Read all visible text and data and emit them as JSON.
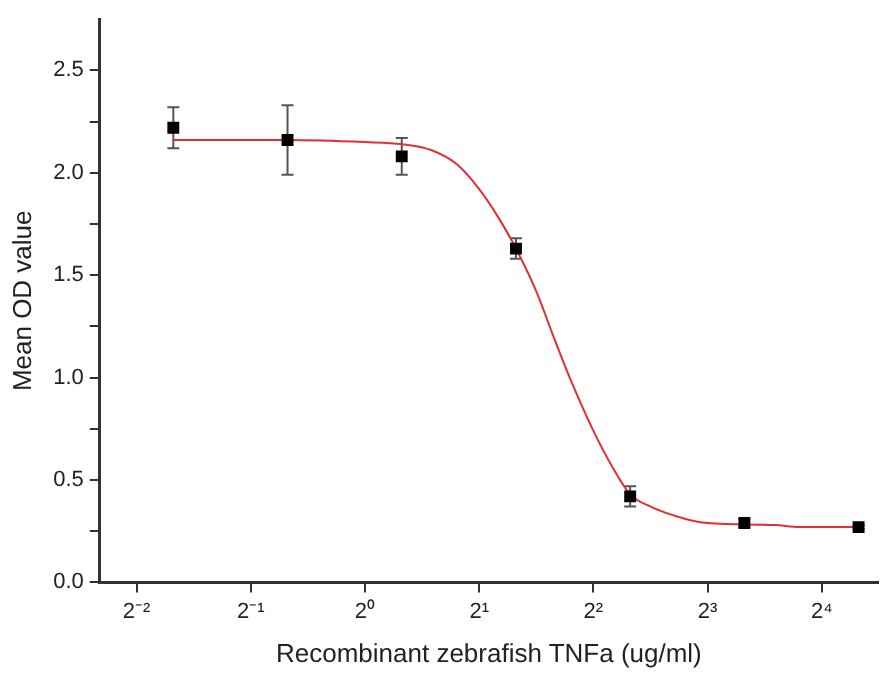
{
  "chart_data": {
    "type": "scatter",
    "xlabel": "Recombinant zebrafish TNFa (ug/ml)",
    "ylabel": "Mean OD value",
    "log": "x",
    "grid": false,
    "legend": false,
    "marker": "square",
    "xlim": [
      0.2,
      22.5
    ],
    "xticks": [
      {
        "value": 0.25,
        "label": "2⁻²"
      },
      {
        "value": 0.5,
        "label": "2⁻¹"
      },
      {
        "value": 1,
        "label": "2⁰"
      },
      {
        "value": 2,
        "label": "2¹"
      },
      {
        "value": 4,
        "label": "2²"
      },
      {
        "value": 8,
        "label": "2³"
      },
      {
        "value": 16,
        "label": "2⁴"
      }
    ],
    "ylim": [
      0,
      2.75
    ],
    "yticks": [
      {
        "value": 0,
        "label": "0.0"
      },
      {
        "value": 0.25,
        "label": null
      },
      {
        "value": 0.5,
        "label": "0.5"
      },
      {
        "value": 0.75,
        "label": null
      },
      {
        "value": 1,
        "label": "1.0"
      },
      {
        "value": 1.25,
        "label": null
      },
      {
        "value": 1.5,
        "label": "1.5"
      },
      {
        "value": 1.75,
        "label": null
      },
      {
        "value": 2,
        "label": "2.0"
      },
      {
        "value": 2.25,
        "label": null
      },
      {
        "value": 2.5,
        "label": "2.5"
      }
    ],
    "series": [
      {
        "type": "line",
        "color": "#e03030",
        "marker": "none",
        "x": [
          0.3125,
          0.625,
          1,
          1.25,
          1.5,
          1.75,
          2,
          2.25,
          2.5,
          2.83,
          3.17,
          3.5,
          4,
          4.5,
          5,
          5.66,
          7,
          8,
          12,
          14,
          20
        ],
        "values": [
          2.16,
          2.16,
          2.15,
          2.14,
          2.11,
          2.04,
          1.92,
          1.78,
          1.63,
          1.42,
          1.18,
          0.98,
          0.74,
          0.56,
          0.43,
          0.37,
          0.31,
          0.29,
          0.28,
          0.27,
          0.27
        ]
      },
      {
        "type": "scatter",
        "color": "#000000",
        "x": [
          0.3125,
          0.625,
          1.25,
          2.5,
          5,
          10,
          20
        ],
        "values": [
          2.22,
          2.16,
          2.08,
          1.63,
          0.42,
          0.29,
          0.27
        ],
        "errors": [
          0.1,
          0.17,
          0.09,
          0.05,
          0.05,
          0.02,
          0.01
        ]
      }
    ]
  }
}
